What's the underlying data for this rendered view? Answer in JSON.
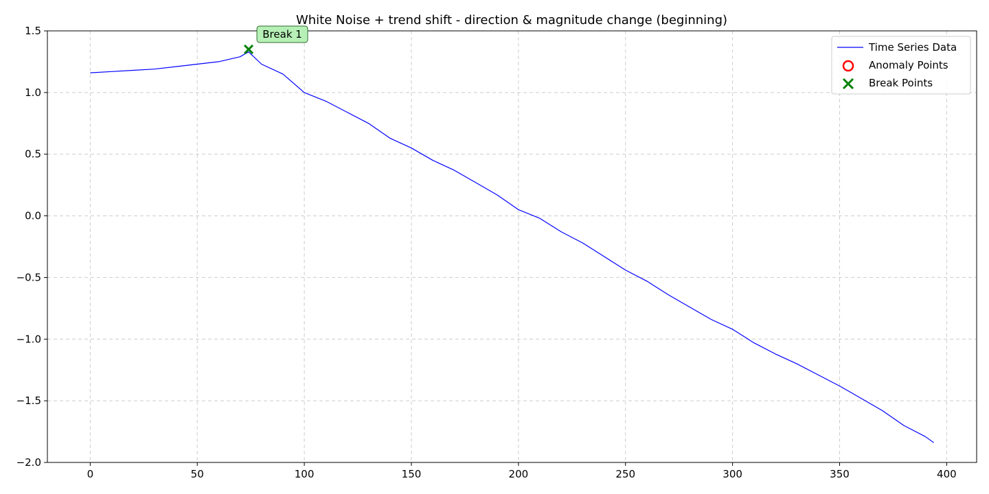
{
  "chart_data": {
    "type": "line",
    "title": "White Noise + trend shift - direction & magnitude change (beginning)",
    "xlabel": "",
    "ylabel": "",
    "xlim": [
      -20,
      414
    ],
    "ylim": [
      -2.0,
      1.5
    ],
    "x_ticks": [
      0,
      50,
      100,
      150,
      200,
      250,
      300,
      350,
      400
    ],
    "x_tick_labels": [
      "0",
      "50",
      "100",
      "150",
      "200",
      "250",
      "300",
      "350",
      "400"
    ],
    "y_ticks": [
      1.5,
      1.0,
      0.5,
      0.0,
      -0.5,
      -1.0,
      -1.5,
      -2.0
    ],
    "y_tick_labels": [
      "1.5",
      "1.0",
      "0.5",
      "0.0",
      "−0.5",
      "−1.0",
      "−1.5",
      "−2.0"
    ],
    "grid": true,
    "legend_position": "top-right",
    "series": [
      {
        "name": "Time Series Data",
        "color": "#0000ff",
        "x": [
          0,
          10,
          20,
          30,
          40,
          50,
          60,
          70,
          74,
          80,
          90,
          100,
          110,
          120,
          130,
          140,
          150,
          160,
          170,
          180,
          190,
          200,
          210,
          220,
          230,
          240,
          250,
          260,
          270,
          280,
          290,
          300,
          310,
          320,
          330,
          340,
          350,
          360,
          370,
          380,
          390,
          394
        ],
        "y": [
          1.16,
          1.17,
          1.18,
          1.19,
          1.21,
          1.23,
          1.25,
          1.29,
          1.33,
          1.23,
          1.15,
          1.0,
          0.93,
          0.84,
          0.75,
          0.63,
          0.55,
          0.45,
          0.37,
          0.27,
          0.17,
          0.05,
          -0.02,
          -0.13,
          -0.22,
          -0.33,
          -0.44,
          -0.53,
          -0.64,
          -0.74,
          -0.84,
          -0.92,
          -1.03,
          -1.12,
          -1.2,
          -1.29,
          -1.38,
          -1.48,
          -1.58,
          -1.7,
          -1.79,
          -1.84
        ]
      }
    ],
    "anomaly_points": {
      "name": "Anomaly Points",
      "color": "#ff0000",
      "x": [],
      "y": []
    },
    "break_points": {
      "name": "Break Points",
      "color": "#008000",
      "x": [
        74
      ],
      "y": [
        1.35
      ],
      "labels": [
        "Break 1"
      ]
    }
  }
}
